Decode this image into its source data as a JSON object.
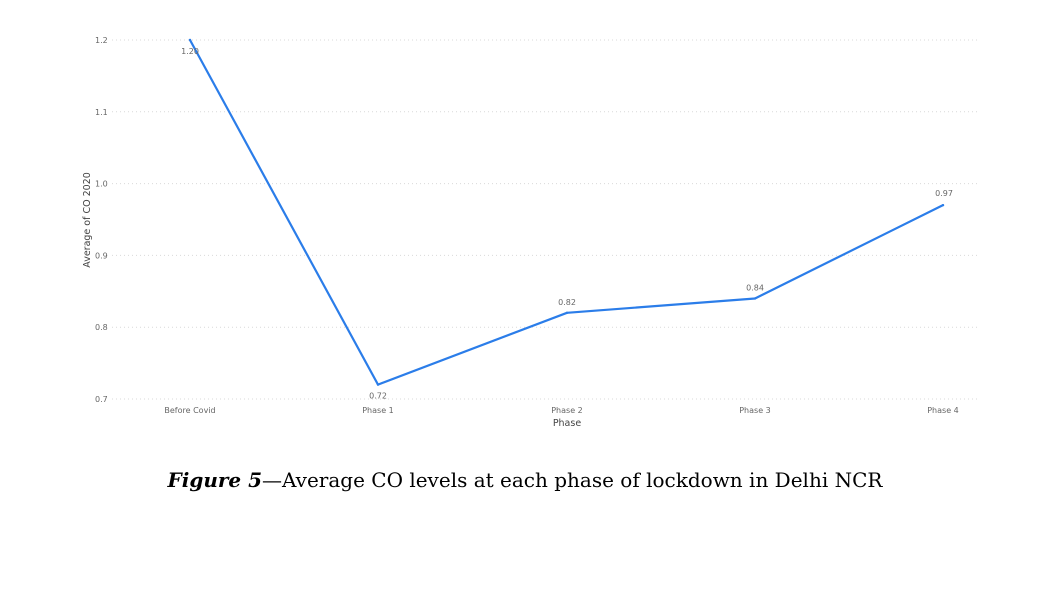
{
  "chart_data": {
    "type": "line",
    "categories": [
      "Before Covid",
      "Phase 1",
      "Phase 2",
      "Phase 3",
      "Phase 4"
    ],
    "series": [
      {
        "name": "",
        "values": [
          1.2,
          0.72,
          0.82,
          0.84,
          0.97
        ]
      }
    ],
    "data_labels": [
      "1.20",
      "0.72",
      "0.82",
      "0.84",
      "0.97"
    ],
    "xlabel": "Phase",
    "ylabel": "Average of CO 2020",
    "ylim": [
      0.7,
      1.2
    ],
    "yticks": [
      0.7,
      0.8,
      0.9,
      1.0,
      1.1,
      1.2
    ],
    "ytick_labels": [
      "0.7",
      "0.8",
      "0.9",
      "1.0",
      "1.1",
      "1.2"
    ],
    "grid": true,
    "line_color": "#2b7de9"
  },
  "caption": {
    "lead": "Figure 5",
    "text": "—Average CO levels at each phase of lockdown in Delhi NCR"
  }
}
